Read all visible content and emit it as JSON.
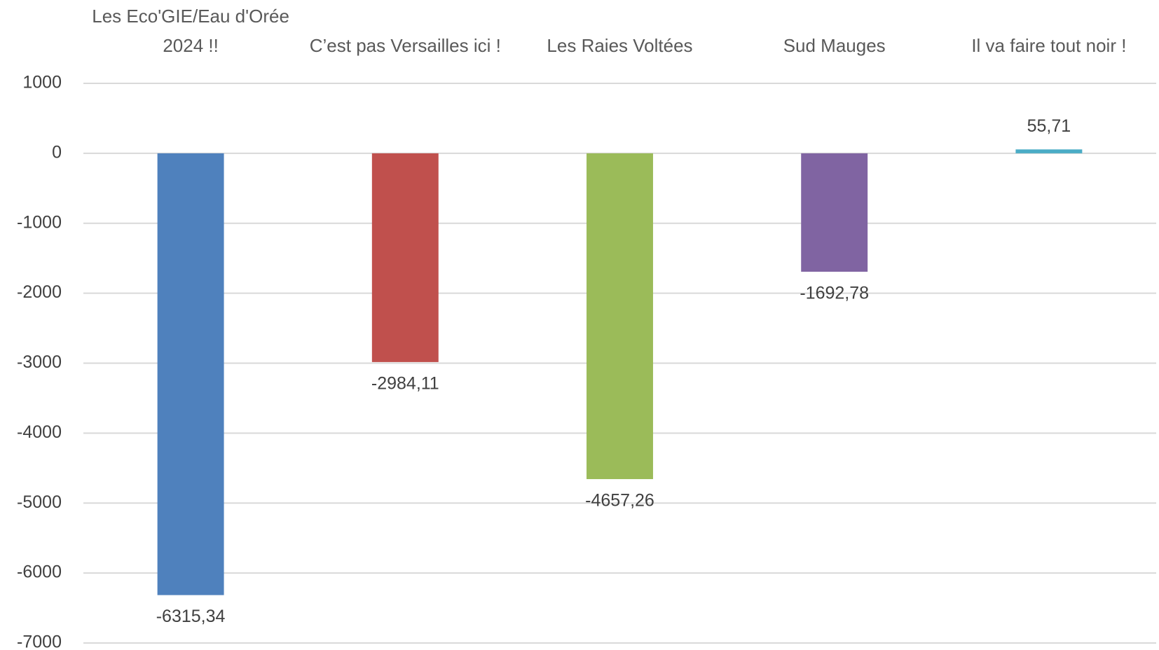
{
  "chart_data": {
    "type": "bar",
    "categories": [
      "Les Eco'GIE/Eau d'Orée 2024 !!",
      "C’est pas Versailles ici !",
      "Les Raies Voltées",
      "Sud Mauges",
      "Il va faire tout noir  !"
    ],
    "values": [
      -6315.34,
      -2984.11,
      -4657.26,
      -1692.78,
      55.71
    ],
    "value_labels": [
      "-6315,34",
      "-2984,11",
      "-4657,26",
      "-1692,78",
      "55,71"
    ],
    "colors": [
      "#4f81bd",
      "#c0504d",
      "#9bbb59",
      "#8064a2",
      "#4bacc6"
    ],
    "ylim": [
      -7000,
      1000
    ],
    "yticks": [
      -7000,
      -6000,
      -5000,
      -4000,
      -3000,
      -2000,
      -1000,
      0,
      1000
    ],
    "grid": true
  }
}
